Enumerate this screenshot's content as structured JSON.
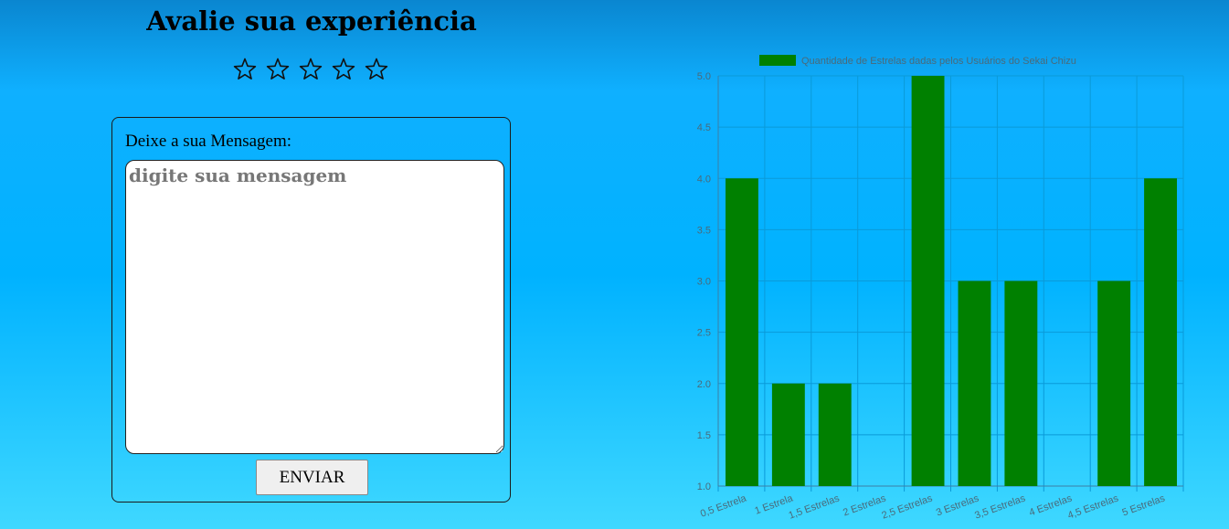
{
  "rating": {
    "title": "Avalie sua experiência",
    "star_count": 5,
    "star_icon": "star-outline-icon"
  },
  "form": {
    "label": "Deixe a sua Mensagem:",
    "placeholder": "digite sua mensagem",
    "value": "",
    "submit_label": "ENVIAR"
  },
  "colors": {
    "bar": "#008000",
    "grid": "#0a9ad8",
    "axis_text": "#4a6a7a",
    "legend_text": "#4a6a7a"
  },
  "chart_data": {
    "type": "bar",
    "title": "",
    "xlabel": "",
    "ylabel": "",
    "categories": [
      "0,5 Estrela",
      "1 Estrela",
      "1,5 Estrelas",
      "2 Estrelas",
      "2,5 Estrelas",
      "3 Estrelas",
      "3,5 Estrelas",
      "4 Estrelas",
      "4,5 Estrelas",
      "5 Estrelas"
    ],
    "series": [
      {
        "name": "Quantidade de Estrelas dadas pelos Usuários do Sekai Chizu",
        "values": [
          4,
          2,
          2,
          1,
          5,
          3,
          3,
          1,
          3,
          4
        ]
      }
    ],
    "ylim": [
      1.0,
      5.0
    ],
    "yticks": [
      "1.0",
      "1.5",
      "2.0",
      "2.5",
      "3.0",
      "3.5",
      "4.0",
      "4.5",
      "5.0"
    ],
    "grid": true,
    "legend": "top"
  }
}
